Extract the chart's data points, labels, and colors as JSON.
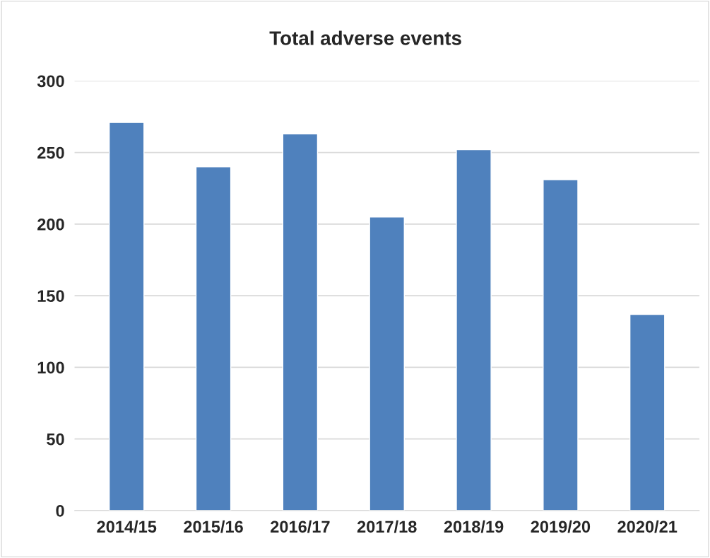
{
  "chart_data": {
    "type": "bar",
    "title": "Total adverse events",
    "categories": [
      "2014/15",
      "2015/16",
      "2016/17",
      "2017/18",
      "2018/19",
      "2019/20",
      "2020/21"
    ],
    "values": [
      271,
      240,
      263,
      205,
      252,
      231,
      137
    ],
    "color": "#4f81bd",
    "ylim": [
      0,
      300
    ],
    "yticks": [
      0,
      50,
      100,
      150,
      200,
      250,
      300
    ],
    "grid": "y",
    "legend": false
  }
}
